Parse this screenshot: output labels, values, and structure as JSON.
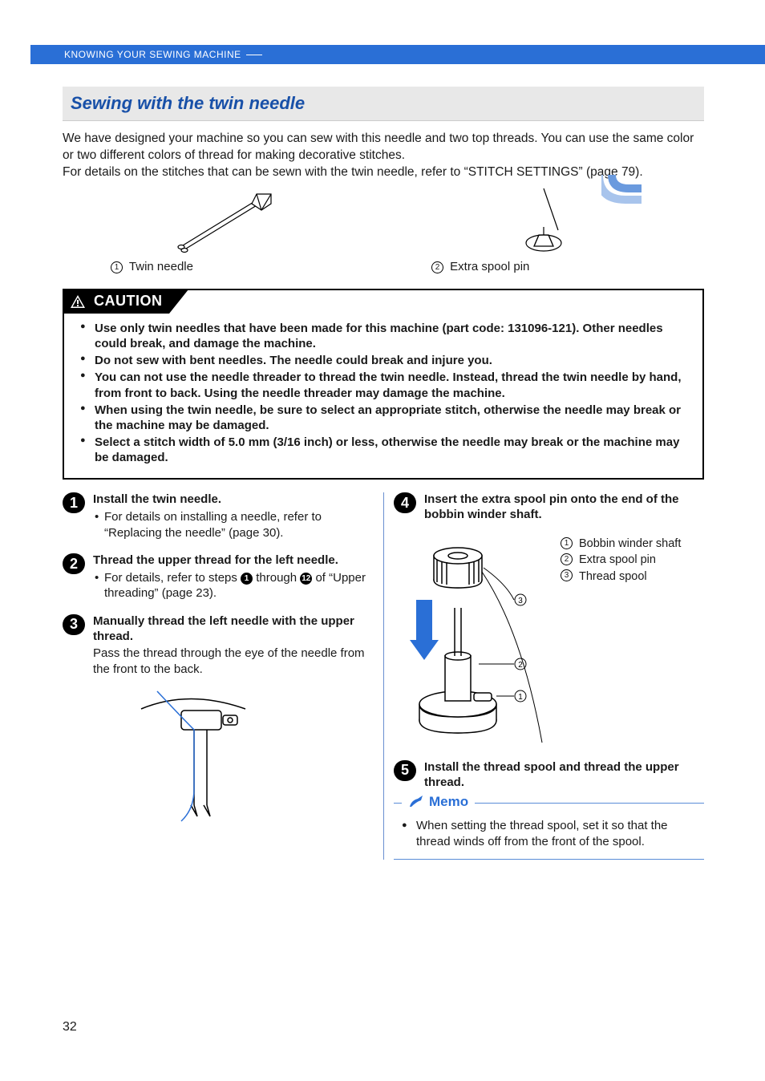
{
  "header": {
    "section": "KNOWING YOUR SEWING MACHINE"
  },
  "title": "Sewing with the twin needle",
  "intro": {
    "p1": "We have designed your machine so you can sew with this needle and two top threads. You can use the same color or two different colors of thread for making decorative stitches.",
    "p2": "For details on the stitches that can be sewn with the twin needle, refer to “STITCH SETTINGS” (page 79)."
  },
  "fig_labels": {
    "twin_needle": "Twin needle",
    "extra_spool_pin": "Extra spool pin"
  },
  "caution": {
    "heading": "CAUTION",
    "items": [
      "Use only twin needles that have been made for this machine (part code: 131096-121). Other needles could break, and damage the machine.",
      "Do not sew with bent needles. The needle could break and injure you.",
      "You can not use the needle threader to thread the twin needle. Instead, thread the twin needle by hand, from front to back. Using the needle threader may damage the machine.",
      "When using the twin needle, be sure to select an appropriate stitch, otherwise the needle may break or the machine may be damaged.",
      "Select a stitch width of 5.0 mm (3/16 inch) or less, otherwise the needle may break or the machine may be damaged."
    ]
  },
  "steps_left": [
    {
      "num": "1",
      "head": "Install the twin needle.",
      "bullets": [
        "For details on installing a needle, refer to “Replacing the needle” (page 30)."
      ]
    },
    {
      "num": "2",
      "head": "Thread the upper thread for the left needle.",
      "bullets_html": "For details, refer to steps <span class=\"inline-num\">1</span> through <span class=\"inline-num\">12</span> of “Upper threading” (page 23)."
    },
    {
      "num": "3",
      "head": "Manually thread the left needle with the upper thread.",
      "body": "Pass the thread through the eye of the needle from the front to the back."
    }
  ],
  "steps_right": [
    {
      "num": "4",
      "head": "Insert the extra spool pin onto the end of the bobbin winder shaft."
    },
    {
      "num": "5",
      "head": "Install the thread spool and thread the upper thread."
    }
  ],
  "callouts_r4": [
    "Bobbin winder shaft",
    "Extra spool pin",
    "Thread spool"
  ],
  "memo": {
    "heading": "Memo",
    "body": "When setting the thread spool, set it so that the thread winds off from the front of the spool."
  },
  "page_number": "32",
  "colors": {
    "brand_blue": "#2a6fd6",
    "title_blue": "#1850a8",
    "rule_blue": "#6a8fd0",
    "title_bg": "#e8e8e8"
  }
}
